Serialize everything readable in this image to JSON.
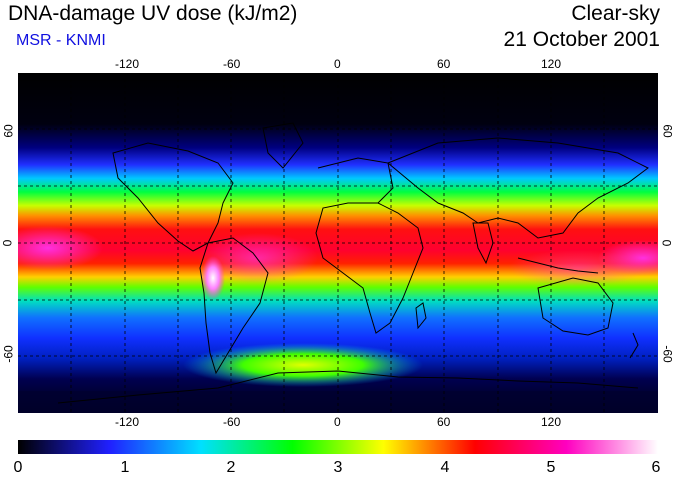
{
  "header": {
    "title": "DNA-damage UV dose (kJ/m2)",
    "subtitle": "MSR - KNMI",
    "condition": "Clear-sky",
    "date": "21 October 2001"
  },
  "axes": {
    "lon_ticks": [
      "-120",
      "-60",
      "0",
      "60",
      "120"
    ],
    "lat_ticks": [
      "60",
      "0",
      "-60"
    ]
  },
  "colorbar": {
    "labels": [
      "0",
      "1",
      "2",
      "3",
      "4",
      "5",
      "6"
    ],
    "colors": [
      "#000000",
      "#2020ff",
      "#00e0ff",
      "#00ff00",
      "#ffff00",
      "#ff0000",
      "#ff00c0",
      "#ffffff"
    ]
  }
}
